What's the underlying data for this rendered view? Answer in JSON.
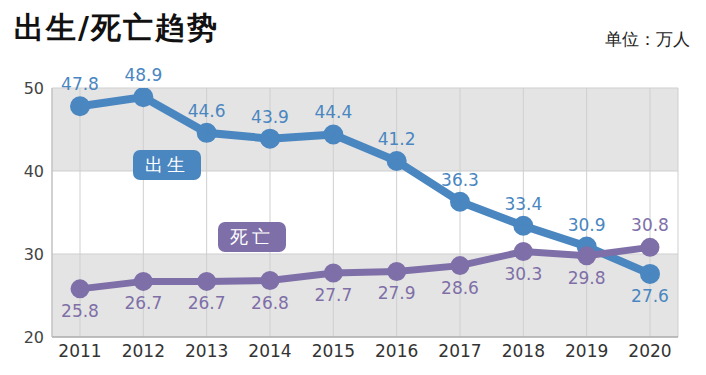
{
  "chart_data": {
    "type": "line",
    "title": "出生/死亡趋势",
    "subtitle": "单位：万人",
    "categories": [
      "2011",
      "2012",
      "2013",
      "2014",
      "2015",
      "2016",
      "2017",
      "2018",
      "2019",
      "2020"
    ],
    "series": [
      {
        "name": "出生",
        "color": "#4a86c0",
        "values": [
          47.8,
          48.9,
          44.6,
          43.9,
          44.4,
          41.2,
          36.3,
          33.4,
          30.9,
          27.6
        ]
      },
      {
        "name": "死亡",
        "color": "#7f6fa8",
        "values": [
          25.8,
          26.7,
          26.7,
          26.8,
          27.7,
          27.9,
          28.6,
          30.3,
          29.8,
          30.8
        ]
      }
    ],
    "ylim": [
      20,
      50
    ],
    "yticks": [
      20,
      30,
      40,
      50
    ],
    "grid": true,
    "data_labels": true,
    "marker": "circle"
  }
}
